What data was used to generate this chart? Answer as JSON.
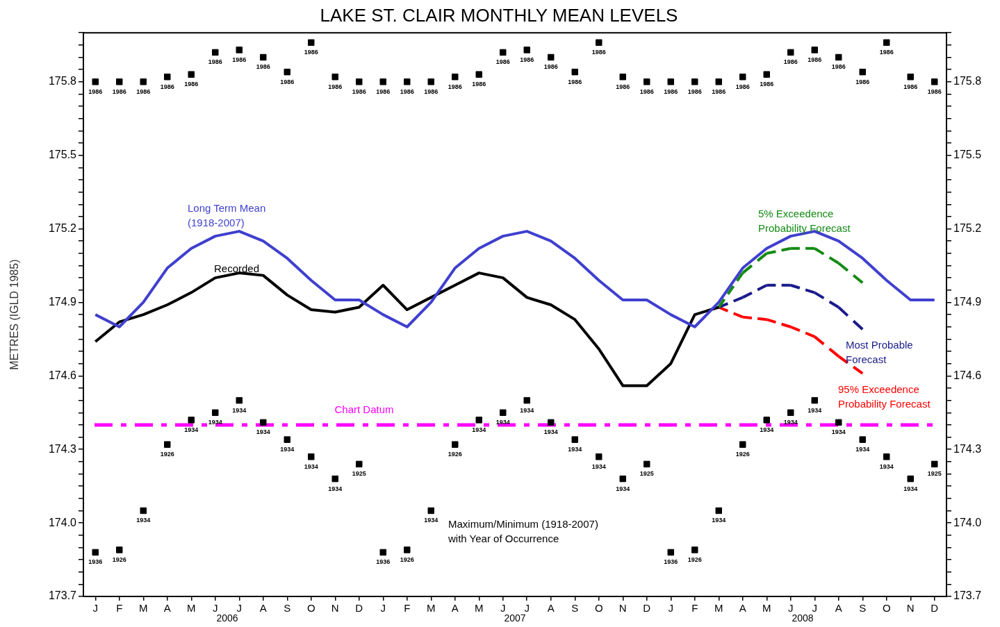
{
  "chart_data": {
    "type": "line",
    "title": "LAKE ST. CLAIR MONTHLY MEAN LEVELS",
    "ylabel": "METRES (IGLD 1985)",
    "categories": [
      "J",
      "F",
      "M",
      "A",
      "M",
      "J",
      "J",
      "A",
      "S",
      "O",
      "N",
      "D",
      "J",
      "F",
      "M",
      "A",
      "M",
      "J",
      "J",
      "A",
      "S",
      "O",
      "N",
      "D",
      "J",
      "F",
      "M",
      "A",
      "M",
      "J",
      "J",
      "A",
      "S",
      "O",
      "N",
      "D"
    ],
    "series": [
      {
        "type": "scatter",
        "marker": "square",
        "color": "#000000",
        "values": [
          175.8,
          175.8,
          175.8,
          175.82,
          175.83,
          175.92,
          175.93,
          175.9,
          175.84,
          175.96,
          175.82,
          175.8,
          175.8,
          175.8,
          175.8,
          175.82,
          175.83,
          175.92,
          175.93,
          175.9,
          175.84,
          175.96,
          175.82,
          175.8,
          175.8,
          175.8,
          175.8,
          175.82,
          175.83,
          175.92,
          175.93,
          175.9,
          175.84,
          175.96,
          175.82,
          175.8
        ]
      },
      {
        "type": "scatter",
        "marker": "square",
        "color": "#000000",
        "values": [
          173.88,
          173.89,
          174.05,
          174.32,
          174.42,
          174.45,
          174.5,
          174.41,
          174.34,
          174.27,
          174.18,
          174.24,
          173.88,
          173.89,
          174.05,
          174.32,
          174.42,
          174.45,
          174.5,
          174.41,
          174.34,
          174.27,
          174.18,
          174.24,
          173.88,
          173.89,
          174.05,
          174.32,
          174.42,
          174.45,
          174.5,
          174.41,
          174.34,
          174.27,
          174.18,
          174.24
        ]
      },
      {
        "name": "Long Term Mean (1918-2007)",
        "color": "#3f3fcf",
        "values": [
          174.85,
          174.8,
          174.9,
          175.04,
          175.12,
          175.17,
          175.19,
          175.15,
          175.08,
          174.99,
          174.91,
          174.91,
          174.85,
          174.8,
          174.9,
          175.04,
          175.12,
          175.17,
          175.19,
          175.15,
          175.08,
          174.99,
          174.91,
          174.91,
          174.85,
          174.8,
          174.9,
          175.04,
          175.12,
          175.17,
          175.19,
          175.15,
          175.08,
          174.99,
          174.91,
          174.91
        ]
      },
      {
        "name": "Recorded",
        "color": "#000000",
        "values": [
          174.74,
          174.82,
          174.85,
          174.89,
          174.94,
          175.0,
          175.02,
          175.01,
          174.93,
          174.87,
          174.86,
          174.88,
          174.97,
          174.87,
          174.92,
          174.97,
          175.02,
          175.0,
          174.92,
          174.89,
          174.83,
          174.71,
          174.56,
          174.56,
          174.65,
          174.85,
          174.88,
          null,
          null,
          null,
          null,
          null,
          null,
          null,
          null,
          null
        ]
      },
      {
        "name": "5% Exceedence Probability Forecast",
        "color": "#138a13",
        "line_style": "dashed",
        "values": [
          null,
          null,
          null,
          null,
          null,
          null,
          null,
          null,
          null,
          null,
          null,
          null,
          null,
          null,
          null,
          null,
          null,
          null,
          null,
          null,
          null,
          null,
          null,
          null,
          null,
          null,
          174.88,
          175.02,
          175.1,
          175.12,
          175.12,
          175.06,
          174.98,
          null,
          null,
          null
        ]
      },
      {
        "name": "Most Probable Forecast",
        "color": "#1a1a8c",
        "line_style": "dashed",
        "values": [
          null,
          null,
          null,
          null,
          null,
          null,
          null,
          null,
          null,
          null,
          null,
          null,
          null,
          null,
          null,
          null,
          null,
          null,
          null,
          null,
          null,
          null,
          null,
          null,
          null,
          null,
          174.88,
          174.92,
          174.97,
          174.97,
          174.94,
          174.88,
          174.79,
          null,
          null,
          null
        ]
      },
      {
        "name": "95% Exceedence Probability Forecast",
        "color": "#ff0000",
        "line_style": "dashed",
        "values": [
          null,
          null,
          null,
          null,
          null,
          null,
          null,
          null,
          null,
          null,
          null,
          null,
          null,
          null,
          null,
          null,
          null,
          null,
          null,
          null,
          null,
          null,
          null,
          null,
          null,
          null,
          174.88,
          174.84,
          174.83,
          174.8,
          174.76,
          174.68,
          174.61,
          null,
          null,
          null
        ]
      }
    ],
    "ref_lines": [
      {
        "axis": "y",
        "value": 174.4,
        "label": "Chart Datum",
        "color": "#ff00ff",
        "line_style": "dashdot"
      }
    ],
    "annotations": [
      "Maximum/Minimum (1918-2007) with Year of Occurrence",
      "2006",
      "2007",
      "2008",
      "1986",
      "1986",
      "1986",
      "1986",
      "1986",
      "1986",
      "1986",
      "1986",
      "1986",
      "1986",
      "1986",
      "1986",
      "1986",
      "1986",
      "1986",
      "1986",
      "1986",
      "1986",
      "1986",
      "1986",
      "1986",
      "1986",
      "1986",
      "1986",
      "1986",
      "1986",
      "1986",
      "1986",
      "1986",
      "1986",
      "1986",
      "1986",
      "1986",
      "1986",
      "1986",
      "1986",
      "1936",
      "1926",
      "1934",
      "1926",
      "1934",
      "1934",
      "1934",
      "1934",
      "1934",
      "1934",
      "1934",
      "1925",
      "1936",
      "1926",
      "1934",
      "1926",
      "1934",
      "1934",
      "1934",
      "1934",
      "1934",
      "1934",
      "1934",
      "1925",
      "1936",
      "1926",
      "1934",
      "1926",
      "1934",
      "1934",
      "1934",
      "1934",
      "1934",
      "1934",
      "1934",
      "1925"
    ],
    "ylim": [
      173.7,
      176.0
    ],
    "yticks": [
      173.7,
      {
        "value": 173.75,
        "label": null
      },
      {
        "value": 173.8,
        "label": null
      },
      {
        "value": 173.85,
        "label": null
      },
      {
        "value": 173.9,
        "label": null
      },
      {
        "value": 173.95,
        "label": null
      },
      {
        "value": 174,
        "label": "174.0"
      },
      {
        "value": 174.05,
        "label": null
      },
      {
        "value": 174.1,
        "label": null
      },
      {
        "value": 174.15,
        "label": null
      },
      {
        "value": 174.2,
        "label": null
      },
      {
        "value": 174.25,
        "label": null
      },
      174.3,
      {
        "value": 174.35,
        "label": null
      },
      {
        "value": 174.4,
        "label": null
      },
      {
        "value": 174.45,
        "label": null
      },
      {
        "value": 174.5,
        "label": null
      },
      {
        "value": 174.55,
        "label": null
      },
      174.6,
      {
        "value": 174.65,
        "label": null
      },
      {
        "value": 174.7,
        "label": null
      },
      {
        "value": 174.75,
        "label": null
      },
      {
        "value": 174.8,
        "label": null
      },
      {
        "value": 174.85,
        "label": null
      },
      174.9,
      {
        "value": 174.95,
        "label": null
      },
      {
        "value": 175,
        "label": null
      },
      {
        "value": 175.05,
        "label": null
      },
      {
        "value": 175.1,
        "label": null
      },
      {
        "value": 175.15,
        "label": null
      },
      175.2,
      {
        "value": 175.25,
        "label": null
      },
      {
        "value": 175.3,
        "label": null
      },
      {
        "value": 175.35,
        "label": null
      },
      {
        "value": 175.4,
        "label": null
      },
      {
        "value": 175.45,
        "label": null
      },
      175.5,
      {
        "value": 175.55,
        "label": null
      },
      {
        "value": 175.6,
        "label": null
      },
      {
        "value": 175.65,
        "label": null
      },
      {
        "value": 175.7,
        "label": null
      },
      {
        "value": 175.75,
        "label": null
      },
      175.8,
      {
        "value": 175.85,
        "label": null
      },
      {
        "value": 175.9,
        "label": null
      },
      {
        "value": 175.95,
        "label": null
      },
      {
        "value": 176,
        "label": null
      }
    ],
    "y2lim": [
      173.7,
      176.0
    ],
    "y2ticks": [
      173.7,
      {
        "value": 173.75,
        "label": null
      },
      {
        "value": 173.8,
        "label": null
      },
      {
        "value": 173.85,
        "label": null
      },
      {
        "value": 173.9,
        "label": null
      },
      {
        "value": 173.95,
        "label": null
      },
      {
        "value": 174,
        "label": "174.0"
      },
      {
        "value": 174.05,
        "label": null
      },
      {
        "value": 174.1,
        "label": null
      },
      {
        "value": 174.15,
        "label": null
      },
      {
        "value": 174.2,
        "label": null
      },
      {
        "value": 174.25,
        "label": null
      },
      174.3,
      {
        "value": 174.35,
        "label": null
      },
      {
        "value": 174.4,
        "label": null
      },
      {
        "value": 174.45,
        "label": null
      },
      {
        "value": 174.5,
        "label": null
      },
      {
        "value": 174.55,
        "label": null
      },
      174.6,
      {
        "value": 174.65,
        "label": null
      },
      {
        "value": 174.7,
        "label": null
      },
      {
        "value": 174.75,
        "label": null
      },
      {
        "value": 174.8,
        "label": null
      },
      {
        "value": 174.85,
        "label": null
      },
      174.9,
      {
        "value": 174.95,
        "label": null
      },
      {
        "value": 175,
        "label": null
      },
      {
        "value": 175.05,
        "label": null
      },
      {
        "value": 175.1,
        "label": null
      },
      {
        "value": 175.15,
        "label": null
      },
      175.2,
      {
        "value": 175.25,
        "label": null
      },
      {
        "value": 175.3,
        "label": null
      },
      {
        "value": 175.35,
        "label": null
      },
      {
        "value": 175.4,
        "label": null
      },
      {
        "value": 175.45,
        "label": null
      },
      175.5,
      {
        "value": 175.55,
        "label": null
      },
      {
        "value": 175.6,
        "label": null
      },
      {
        "value": 175.65,
        "label": null
      },
      {
        "value": 175.7,
        "label": null
      },
      {
        "value": 175.75,
        "label": null
      },
      175.8,
      {
        "value": 175.85,
        "label": null
      },
      {
        "value": 175.9,
        "label": null
      },
      {
        "value": 175.95,
        "label": null
      },
      {
        "value": 176,
        "label": null
      }
    ],
    "grid": false,
    "legend": false
  }
}
